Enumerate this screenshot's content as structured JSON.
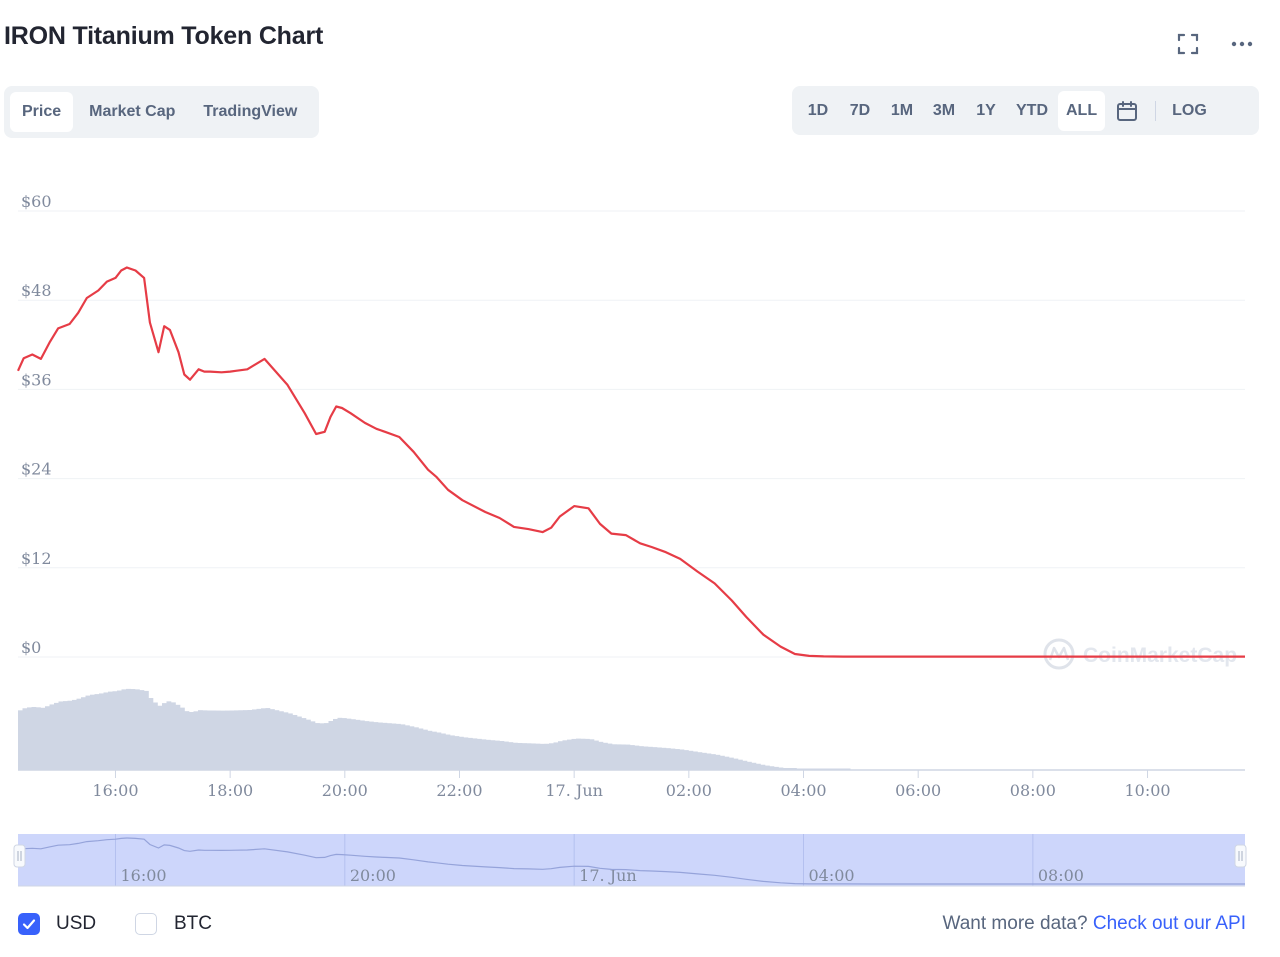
{
  "title": "IRON Titanium Token Chart",
  "header_icons": [
    "fullscreen-icon",
    "more-options-icon"
  ],
  "tabs": [
    {
      "label": "Price",
      "active": true
    },
    {
      "label": "Market Cap",
      "active": false
    },
    {
      "label": "TradingView",
      "active": false
    }
  ],
  "ranges": [
    {
      "label": "1D",
      "active": false
    },
    {
      "label": "7D",
      "active": false
    },
    {
      "label": "1M",
      "active": false
    },
    {
      "label": "3M",
      "active": false
    },
    {
      "label": "1Y",
      "active": false
    },
    {
      "label": "YTD",
      "active": false
    },
    {
      "label": "ALL",
      "active": true
    }
  ],
  "log_label": "LOG",
  "watermark": "CoinMarketCap",
  "colors": {
    "price_line": "#e63c46",
    "volume": "#cfd6e4",
    "navigator_fill": "#cdd6fb",
    "accent": "#3861fb",
    "axis_text": "#808a9d"
  },
  "chart_data": {
    "type": "line",
    "title": "IRON Titanium Token Chart",
    "xlabel": "",
    "ylabel": "",
    "y_ticks": [
      "$60",
      "$48",
      "$36",
      "$24",
      "$12",
      "$0"
    ],
    "ylim": [
      0,
      60
    ],
    "x_ticks": [
      "16:00",
      "18:00",
      "20:00",
      "22:00",
      "17. Jun",
      "02:00",
      "04:00",
      "06:00",
      "08:00",
      "10:00"
    ],
    "x_hours_range": [
      14.3,
      11.7
    ],
    "series": [
      {
        "type": "line",
        "x_hours": [
          14.3,
          14.4,
          14.55,
          14.7,
          14.85,
          15.0,
          15.2,
          15.35,
          15.5,
          15.7,
          15.85,
          16.0,
          16.1,
          16.2,
          16.35,
          16.5,
          16.6,
          16.75,
          16.85,
          16.95,
          17.1,
          17.2,
          17.3,
          17.45,
          17.55,
          17.65,
          17.85,
          18.0,
          18.1,
          18.3,
          18.6,
          19.0,
          19.3,
          19.5,
          19.65,
          19.75,
          19.85,
          19.95,
          20.1,
          20.35,
          20.55,
          20.7,
          20.95,
          21.2,
          21.45,
          21.6,
          21.8,
          22.05,
          22.45,
          22.7,
          22.95,
          23.2,
          23.45,
          23.6,
          23.75,
          24.0,
          24.25,
          24.45,
          24.65,
          24.9,
          25.15,
          25.35,
          25.6,
          25.85,
          26.15,
          26.45,
          26.75,
          27.0,
          27.3,
          27.6,
          27.85,
          28.1,
          28.35,
          28.7,
          29.2,
          29.7,
          30.2,
          31.7,
          32.8,
          33.5,
          34.7,
          35.7
        ],
        "values": [
          38.5,
          40.2,
          40.7,
          40.1,
          42.3,
          44.2,
          44.8,
          46.3,
          48.3,
          49.3,
          50.5,
          51.0,
          52.0,
          52.4,
          52.0,
          51.0,
          45.0,
          41.0,
          44.5,
          44.0,
          41.0,
          38.0,
          37.3,
          38.7,
          38.4,
          38.4,
          38.3,
          38.4,
          38.5,
          38.7,
          40.1,
          36.6,
          32.8,
          30.0,
          30.3,
          32.3,
          33.7,
          33.5,
          32.8,
          31.5,
          30.7,
          30.3,
          29.6,
          27.6,
          25.2,
          24.2,
          22.5,
          21.1,
          19.5,
          18.7,
          17.5,
          17.2,
          16.8,
          17.4,
          18.9,
          20.3,
          20.0,
          17.9,
          16.6,
          16.4,
          15.3,
          14.8,
          14.1,
          13.2,
          11.5,
          9.9,
          7.6,
          5.4,
          3.0,
          1.4,
          0.4,
          0.15,
          0.08,
          0.06,
          0.05,
          0.05,
          0.05,
          0.05,
          0.05,
          0.05,
          0.05,
          0.05
        ]
      }
    ],
    "volume_note": "volume bars shown without axis values",
    "grid": true,
    "legend": "none"
  },
  "navigator": {
    "labels": [
      "16:00",
      "20:00",
      "17. Jun",
      "04:00",
      "08:00"
    ]
  },
  "currency": {
    "usd_label": "USD",
    "btc_label": "BTC",
    "usd_checked": true,
    "btc_checked": false
  },
  "footer": {
    "prompt": "Want more data?",
    "link": "Check out our API"
  }
}
